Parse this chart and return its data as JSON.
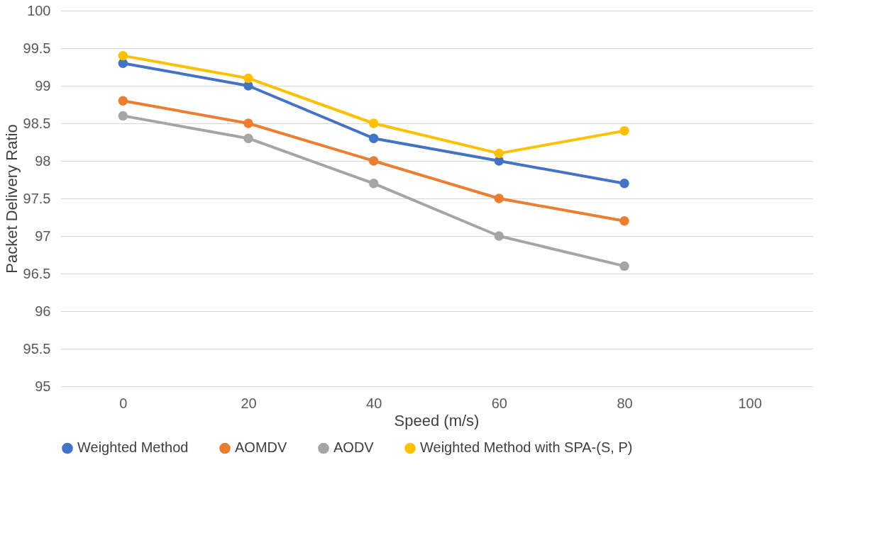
{
  "chart_data": {
    "type": "line",
    "xlabel": "Speed (m/s)",
    "ylabel": "Packet Delivery Ratio",
    "categories": [
      "0",
      "20",
      "40",
      "60",
      "80",
      "100"
    ],
    "series": [
      {
        "name": "Weighted Method",
        "color": "#4472c4",
        "values": [
          99.3,
          99.0,
          98.3,
          98.0,
          97.7,
          null
        ]
      },
      {
        "name": "AOMDV",
        "color": "#ed7d31",
        "values": [
          98.8,
          98.5,
          98.0,
          97.5,
          97.2,
          null
        ]
      },
      {
        "name": "AODV",
        "color": "#a5a5a5",
        "values": [
          98.6,
          98.3,
          97.7,
          97.0,
          96.6,
          null
        ]
      },
      {
        "name": "Weighted Method with SPA-(S, P)",
        "color": "#ffc000",
        "values": [
          99.4,
          99.1,
          98.5,
          98.1,
          98.4,
          null
        ]
      }
    ],
    "ylim": [
      95,
      100
    ],
    "yticks": [
      95,
      95.5,
      96,
      96.5,
      97,
      97.5,
      98,
      98.5,
      99,
      99.5,
      100
    ],
    "grid": "y",
    "legend": "bottom",
    "marker": "circle",
    "line_style": "solid"
  }
}
